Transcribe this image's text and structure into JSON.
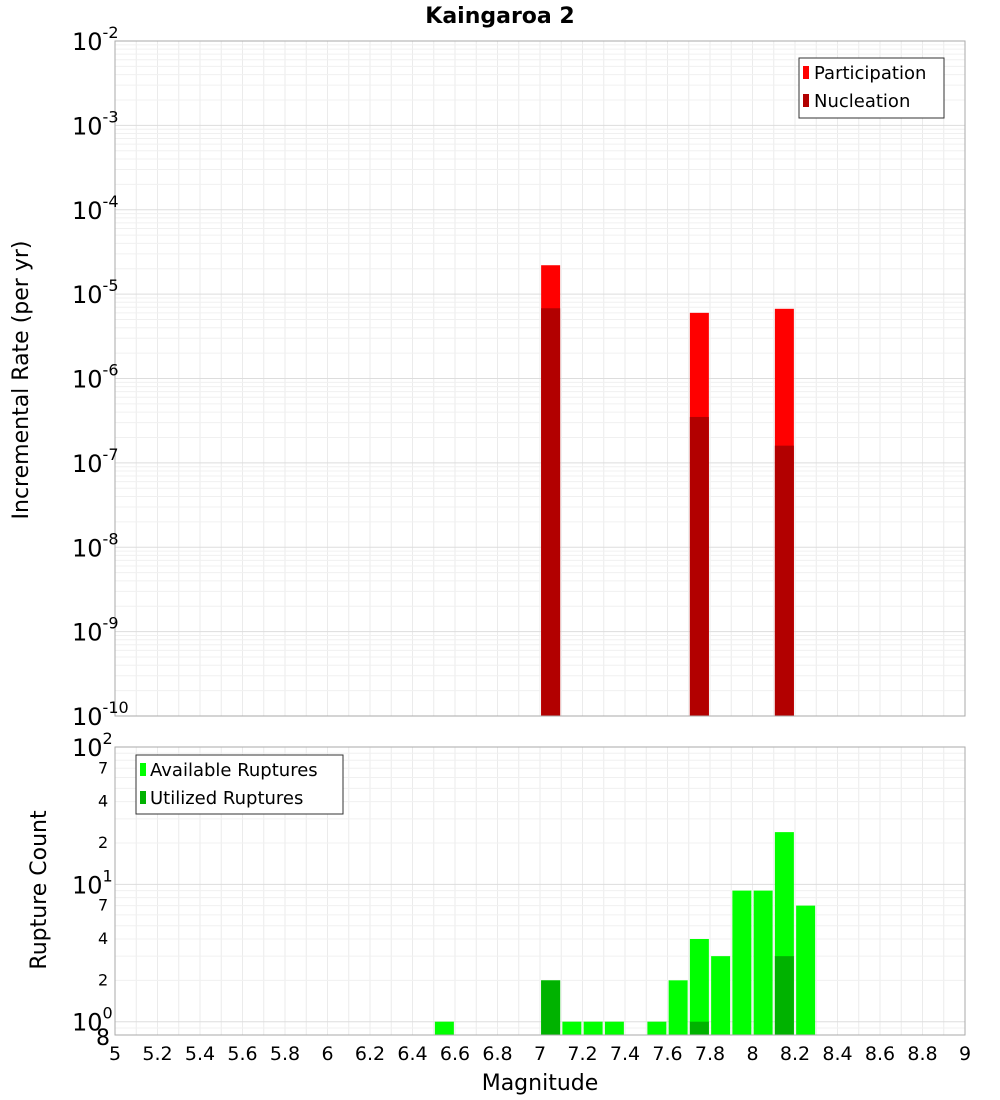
{
  "chart_data": [
    {
      "type": "bar",
      "title": "Kaingaroa 2",
      "xlabel": "",
      "ylabel": "Incremental Rate (per yr)",
      "yscale": "log",
      "ylim": [
        1e-10,
        0.01
      ],
      "xlim": [
        5,
        9
      ],
      "y_tick_labels": [
        {
          "base": "10",
          "exp": "-10"
        },
        {
          "base": "10",
          "exp": "-9"
        },
        {
          "base": "10",
          "exp": "-8"
        },
        {
          "base": "10",
          "exp": "-7"
        },
        {
          "base": "10",
          "exp": "-6"
        },
        {
          "base": "10",
          "exp": "-5"
        },
        {
          "base": "10",
          "exp": "-4"
        },
        {
          "base": "10",
          "exp": "-3"
        },
        {
          "base": "10",
          "exp": "-2"
        }
      ],
      "legend": {
        "position": "top-right",
        "entries": [
          "Participation",
          "Nucleation"
        ]
      },
      "colors": {
        "Participation": "#ff0000",
        "Nucleation": "#b20000"
      },
      "series": [
        {
          "name": "Participation",
          "x": [
            7.05,
            7.75,
            8.15
          ],
          "values": [
            2.2e-05,
            6e-06,
            6.7e-06
          ]
        },
        {
          "name": "Nucleation",
          "x": [
            7.05,
            7.75,
            8.15
          ],
          "values": [
            6.8e-06,
            3.5e-07,
            1.6e-07
          ]
        }
      ]
    },
    {
      "type": "bar",
      "title": "",
      "xlabel": "Magnitude",
      "ylabel": "Rupture Count",
      "yscale": "log",
      "ylim": [
        0.8,
        100
      ],
      "xlim": [
        5,
        9
      ],
      "x_ticks": [
        "5",
        "5.2",
        "5.4",
        "5.6",
        "5.8",
        "6",
        "6.2",
        "6.4",
        "6.6",
        "6.8",
        "7",
        "7.2",
        "7.4",
        "7.6",
        "7.8",
        "8",
        "8.2",
        "8.4",
        "8.6",
        "8.8",
        "9"
      ],
      "y_tick_labels": [
        {
          "value": 1,
          "base": "10",
          "exp": "0"
        },
        {
          "value": 10,
          "base": "10",
          "exp": "1"
        },
        {
          "value": 100,
          "base": "10",
          "exp": "2"
        }
      ],
      "y_minor_tick_labels": [
        {
          "value": 0.8,
          "label": "8"
        },
        {
          "value": 2,
          "label": "2"
        },
        {
          "value": 4,
          "label": "4"
        },
        {
          "value": 7,
          "label": "7"
        },
        {
          "value": 20,
          "label": "2"
        },
        {
          "value": 40,
          "label": "4"
        },
        {
          "value": 70,
          "label": "7"
        }
      ],
      "legend": {
        "position": "top-left",
        "entries": [
          "Available Ruptures",
          "Utilized Ruptures"
        ]
      },
      "colors": {
        "Available Ruptures": "#00ff00",
        "Utilized Ruptures": "#00b200"
      },
      "series": [
        {
          "name": "Available Ruptures",
          "x": [
            6.55,
            7.05,
            7.15,
            7.25,
            7.35,
            7.55,
            7.65,
            7.75,
            7.85,
            7.95,
            8.05,
            8.15,
            8.25
          ],
          "values": [
            1,
            2,
            1,
            1,
            1,
            1,
            2,
            4,
            3,
            9,
            9,
            24,
            7
          ]
        },
        {
          "name": "Utilized Ruptures",
          "x": [
            7.05,
            7.75,
            8.15
          ],
          "values": [
            2,
            1,
            3
          ]
        }
      ]
    }
  ]
}
